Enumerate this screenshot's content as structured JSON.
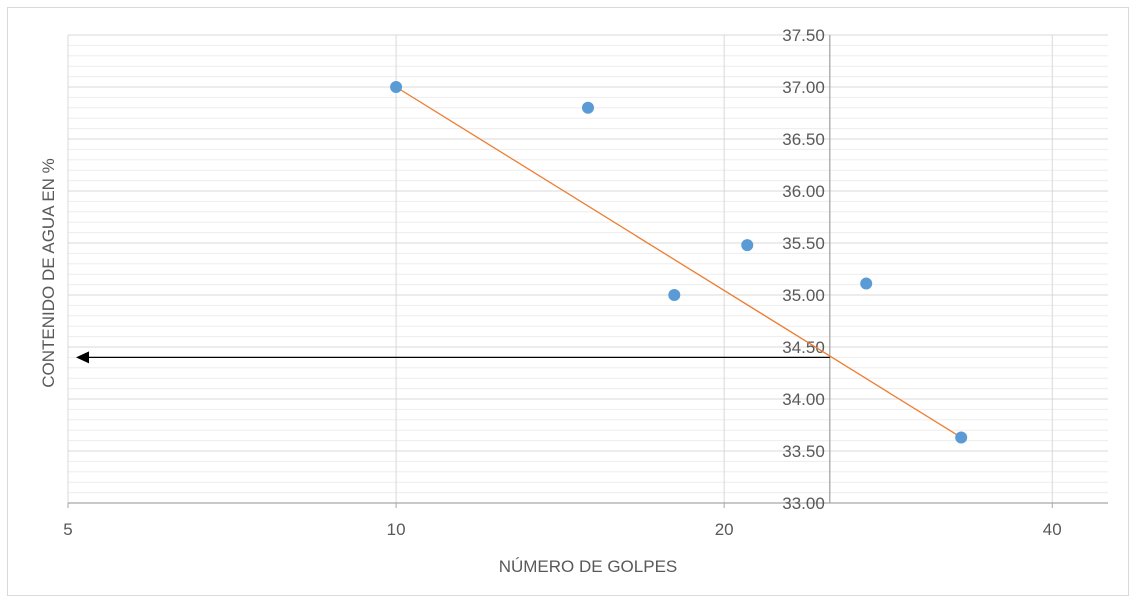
{
  "chart_data": {
    "type": "scatter",
    "title": "",
    "xlabel": "NÚMERO DE GOLPES",
    "ylabel": "CONTENIDO DE AGUA EN %",
    "x_scale": "log",
    "x_ticks": [
      5,
      10,
      20,
      40
    ],
    "x_tick_labels": [
      "5",
      "10",
      "20",
      "40"
    ],
    "xlim": [
      5,
      45
    ],
    "y_ticks": [
      33.0,
      33.5,
      34.0,
      34.5,
      35.0,
      35.5,
      36.0,
      36.5,
      37.0,
      37.5
    ],
    "y_tick_labels": [
      "33.00",
      "33.50",
      "34.00",
      "34.50",
      "35.00",
      "35.50",
      "36.00",
      "36.50",
      "37.00",
      "37.50"
    ],
    "ylim": [
      33.0,
      37.5
    ],
    "y_axis_at_x": 25,
    "grid": true,
    "series": [
      {
        "type": "scatter",
        "color": "#5b9bd5",
        "points": [
          {
            "x": 10,
            "y": 37.0
          },
          {
            "x": 15,
            "y": 36.8
          },
          {
            "x": 18,
            "y": 35.0
          },
          {
            "x": 21,
            "y": 35.48
          },
          {
            "x": 27,
            "y": 35.11
          },
          {
            "x": 33,
            "y": 33.63
          }
        ]
      },
      {
        "type": "line",
        "color": "#ed7d31",
        "points": [
          {
            "x": 10,
            "y": 37.0
          },
          {
            "x": 33,
            "y": 33.63
          }
        ]
      }
    ],
    "annotations": [
      {
        "type": "arrow",
        "from": {
          "x": 25,
          "y": 34.4
        },
        "to": {
          "x": 5,
          "y": 34.4
        },
        "color": "#000000"
      }
    ]
  }
}
